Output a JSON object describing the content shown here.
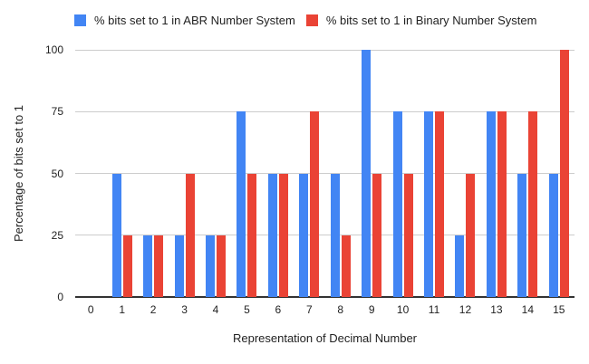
{
  "chart_data": {
    "type": "bar",
    "title": "",
    "categories": [
      "0",
      "1",
      "2",
      "3",
      "4",
      "5",
      "6",
      "7",
      "8",
      "9",
      "10",
      "11",
      "12",
      "13",
      "14",
      "15"
    ],
    "series": [
      {
        "name": "% bits set to 1 in ABR Number System",
        "color": "#4285F4",
        "values": [
          0,
          50,
          25,
          25,
          25,
          75,
          50,
          50,
          50,
          100,
          75,
          75,
          25,
          75,
          50,
          50
        ]
      },
      {
        "name": "% bits set to 1 in Binary Number System",
        "color": "#EA4335",
        "values": [
          0,
          25,
          25,
          50,
          25,
          50,
          50,
          75,
          25,
          50,
          50,
          75,
          50,
          75,
          75,
          100
        ]
      }
    ],
    "xlabel": "Representation of Decimal Number",
    "ylabel": "Percentage of bits set to 1",
    "ylim": [
      0,
      100
    ],
    "yticks": [
      0,
      25,
      50,
      75,
      100
    ],
    "grid": true,
    "legend_position": "top"
  },
  "colors": {
    "background": "#ffffff",
    "gridline": "#cccccc",
    "axis_line": "#333333",
    "text": "#222222"
  }
}
